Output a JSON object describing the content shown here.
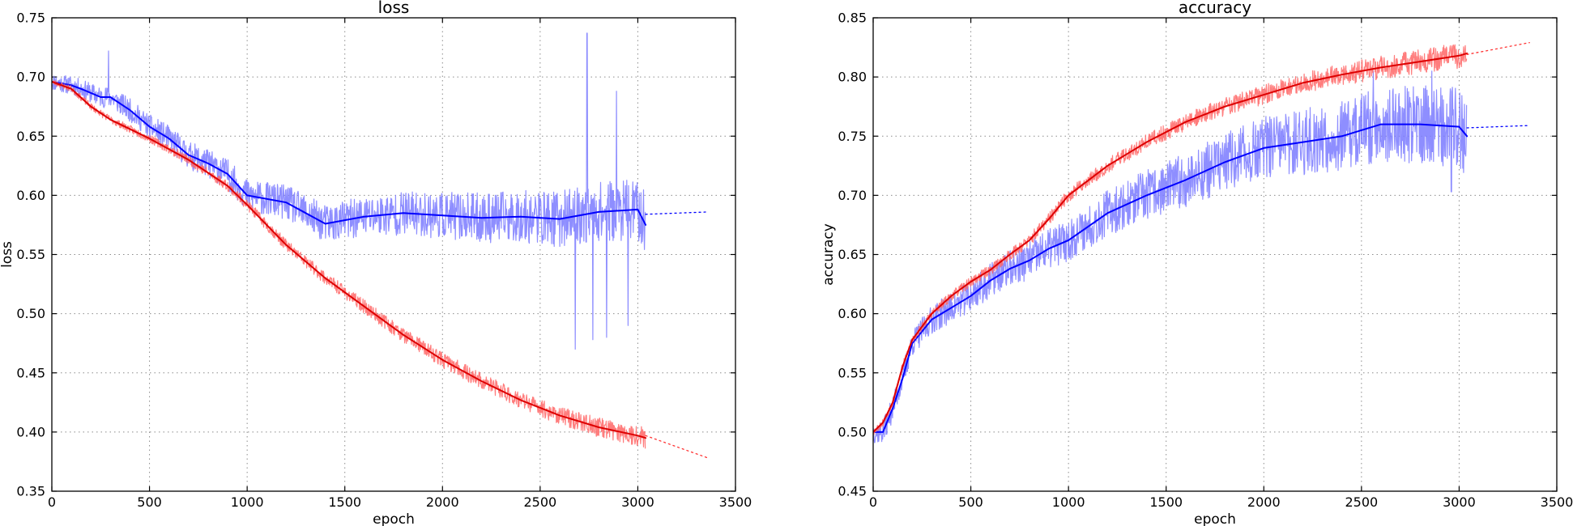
{
  "chart_data": [
    {
      "type": "line",
      "title": "loss",
      "xlabel": "epoch",
      "ylabel": "loss",
      "xlim": [
        0,
        3500
      ],
      "ylim": [
        0.35,
        0.75
      ],
      "xticks": [
        "0",
        "500",
        "1000",
        "1500",
        "2000",
        "2500",
        "3000",
        "3500"
      ],
      "yticks": [
        "0.35",
        "0.40",
        "0.45",
        "0.50",
        "0.55",
        "0.60",
        "0.65",
        "0.70",
        "0.75"
      ],
      "grid": true,
      "series": [
        {
          "role": "raw",
          "color": "#7a7aff",
          "opacity": 0.85,
          "width": 1.2,
          "noise": 0.012,
          "seed": 11,
          "x": [
            0,
            100,
            150,
            250,
            300,
            400,
            500,
            600,
            700,
            800,
            900,
            1000,
            1200,
            1400,
            1600,
            1800,
            2000,
            2200,
            2400,
            2600,
            2800,
            3000,
            3040
          ],
          "y": [
            0.696,
            0.693,
            0.69,
            0.683,
            0.683,
            0.672,
            0.658,
            0.648,
            0.634,
            0.627,
            0.618,
            0.6,
            0.594,
            0.576,
            0.582,
            0.585,
            0.583,
            0.581,
            0.582,
            0.58,
            0.586,
            0.588,
            0.575
          ],
          "spikes": [
            [
              290,
              0.722
            ],
            [
              2680,
              0.47
            ],
            [
              2740,
              0.737
            ],
            [
              2770,
              0.478
            ],
            [
              2840,
              0.48
            ],
            [
              2890,
              0.688
            ],
            [
              2950,
              0.49
            ]
          ]
        },
        {
          "role": "smoothed",
          "color": "#0000ff",
          "opacity": 1,
          "width": 2,
          "x": [
            0,
            100,
            150,
            250,
            300,
            400,
            500,
            600,
            700,
            800,
            900,
            1000,
            1200,
            1400,
            1600,
            1800,
            2000,
            2200,
            2400,
            2600,
            2800,
            3000,
            3040
          ],
          "y": [
            0.696,
            0.693,
            0.69,
            0.683,
            0.683,
            0.672,
            0.658,
            0.648,
            0.634,
            0.627,
            0.618,
            0.6,
            0.594,
            0.576,
            0.582,
            0.585,
            0.583,
            0.581,
            0.582,
            0.58,
            0.586,
            0.588,
            0.575
          ]
        },
        {
          "role": "raw",
          "color": "#ff6666",
          "opacity": 0.85,
          "width": 1.2,
          "noise": 0.004,
          "seed": 23,
          "x": [
            0,
            100,
            200,
            300,
            500,
            700,
            900,
            1000,
            1200,
            1400,
            1600,
            1800,
            2000,
            2200,
            2400,
            2600,
            2800,
            3000,
            3040
          ],
          "y": [
            0.696,
            0.69,
            0.675,
            0.664,
            0.648,
            0.63,
            0.608,
            0.592,
            0.558,
            0.53,
            0.506,
            0.482,
            0.461,
            0.443,
            0.427,
            0.414,
            0.404,
            0.397,
            0.395
          ]
        },
        {
          "role": "smoothed",
          "color": "#dd0000",
          "opacity": 1,
          "width": 2,
          "x": [
            0,
            100,
            200,
            300,
            500,
            700,
            900,
            1000,
            1200,
            1400,
            1600,
            1800,
            2000,
            2200,
            2400,
            2600,
            2800,
            3000,
            3040
          ],
          "y": [
            0.696,
            0.69,
            0.675,
            0.664,
            0.648,
            0.63,
            0.608,
            0.592,
            0.558,
            0.53,
            0.506,
            0.482,
            0.461,
            0.443,
            0.427,
            0.414,
            0.404,
            0.397,
            0.395
          ]
        },
        {
          "role": "trend",
          "color": "#0000ff",
          "dashed": true,
          "width": 1.3,
          "x": [
            3040,
            3360
          ],
          "y": [
            0.584,
            0.586
          ]
        },
        {
          "role": "trend",
          "color": "#ff3333",
          "dashed": true,
          "width": 1.3,
          "x": [
            3040,
            3360
          ],
          "y": [
            0.397,
            0.378
          ]
        }
      ]
    },
    {
      "type": "line",
      "title": "accuracy",
      "xlabel": "epoch",
      "ylabel": "accuracy",
      "xlim": [
        0,
        3500
      ],
      "ylim": [
        0.45,
        0.85
      ],
      "xticks": [
        "0",
        "500",
        "1000",
        "1500",
        "2000",
        "2500",
        "3000",
        "3500"
      ],
      "yticks": [
        "0.45",
        "0.50",
        "0.55",
        "0.60",
        "0.65",
        "0.70",
        "0.75",
        "0.80",
        "0.85"
      ],
      "grid": true,
      "series": [
        {
          "role": "raw",
          "color": "#7a7aff",
          "opacity": 0.85,
          "width": 1.2,
          "noise": 0.016,
          "seed": 37,
          "x": [
            0,
            50,
            100,
            150,
            200,
            300,
            400,
            500,
            600,
            700,
            800,
            900,
            1000,
            1200,
            1400,
            1600,
            1800,
            2000,
            2200,
            2400,
            2600,
            2800,
            3000,
            3040
          ],
          "y": [
            0.5,
            0.5,
            0.52,
            0.545,
            0.575,
            0.595,
            0.605,
            0.615,
            0.628,
            0.638,
            0.645,
            0.655,
            0.662,
            0.685,
            0.7,
            0.713,
            0.728,
            0.74,
            0.745,
            0.75,
            0.76,
            0.76,
            0.758,
            0.75
          ],
          "spikes": [
            [
              2560,
              0.805
            ],
            [
              2860,
              0.805
            ],
            [
              2960,
              0.703
            ]
          ]
        },
        {
          "role": "smoothed",
          "color": "#0000ff",
          "opacity": 1,
          "width": 2,
          "x": [
            0,
            50,
            100,
            150,
            200,
            300,
            400,
            500,
            600,
            700,
            800,
            900,
            1000,
            1200,
            1400,
            1600,
            1800,
            2000,
            2200,
            2400,
            2600,
            2800,
            3000,
            3040
          ],
          "y": [
            0.5,
            0.5,
            0.52,
            0.545,
            0.575,
            0.595,
            0.605,
            0.615,
            0.628,
            0.638,
            0.645,
            0.655,
            0.662,
            0.685,
            0.7,
            0.713,
            0.728,
            0.74,
            0.745,
            0.75,
            0.76,
            0.76,
            0.758,
            0.75
          ]
        },
        {
          "role": "raw",
          "color": "#ff6666",
          "opacity": 0.85,
          "width": 1.2,
          "noise": 0.005,
          "seed": 53,
          "x": [
            0,
            50,
            100,
            150,
            200,
            300,
            400,
            500,
            600,
            700,
            800,
            900,
            1000,
            1200,
            1400,
            1600,
            1800,
            2000,
            2200,
            2400,
            2600,
            2800,
            3000,
            3040
          ],
          "y": [
            0.5,
            0.508,
            0.525,
            0.555,
            0.578,
            0.6,
            0.615,
            0.627,
            0.637,
            0.65,
            0.662,
            0.68,
            0.7,
            0.725,
            0.745,
            0.762,
            0.775,
            0.785,
            0.795,
            0.802,
            0.808,
            0.813,
            0.818,
            0.82
          ]
        },
        {
          "role": "smoothed",
          "color": "#dd0000",
          "opacity": 1,
          "width": 2,
          "x": [
            0,
            50,
            100,
            150,
            200,
            300,
            400,
            500,
            600,
            700,
            800,
            900,
            1000,
            1200,
            1400,
            1600,
            1800,
            2000,
            2200,
            2400,
            2600,
            2800,
            3000,
            3040
          ],
          "y": [
            0.5,
            0.508,
            0.525,
            0.555,
            0.578,
            0.6,
            0.615,
            0.627,
            0.637,
            0.65,
            0.662,
            0.68,
            0.7,
            0.725,
            0.745,
            0.762,
            0.775,
            0.785,
            0.795,
            0.802,
            0.808,
            0.813,
            0.818,
            0.82
          ]
        },
        {
          "role": "trend",
          "color": "#0000ff",
          "dashed": true,
          "width": 1.3,
          "x": [
            3040,
            3360
          ],
          "y": [
            0.757,
            0.759
          ]
        },
        {
          "role": "trend",
          "color": "#ff3333",
          "dashed": true,
          "width": 1.3,
          "x": [
            3040,
            3360
          ],
          "y": [
            0.819,
            0.829
          ]
        }
      ]
    }
  ]
}
